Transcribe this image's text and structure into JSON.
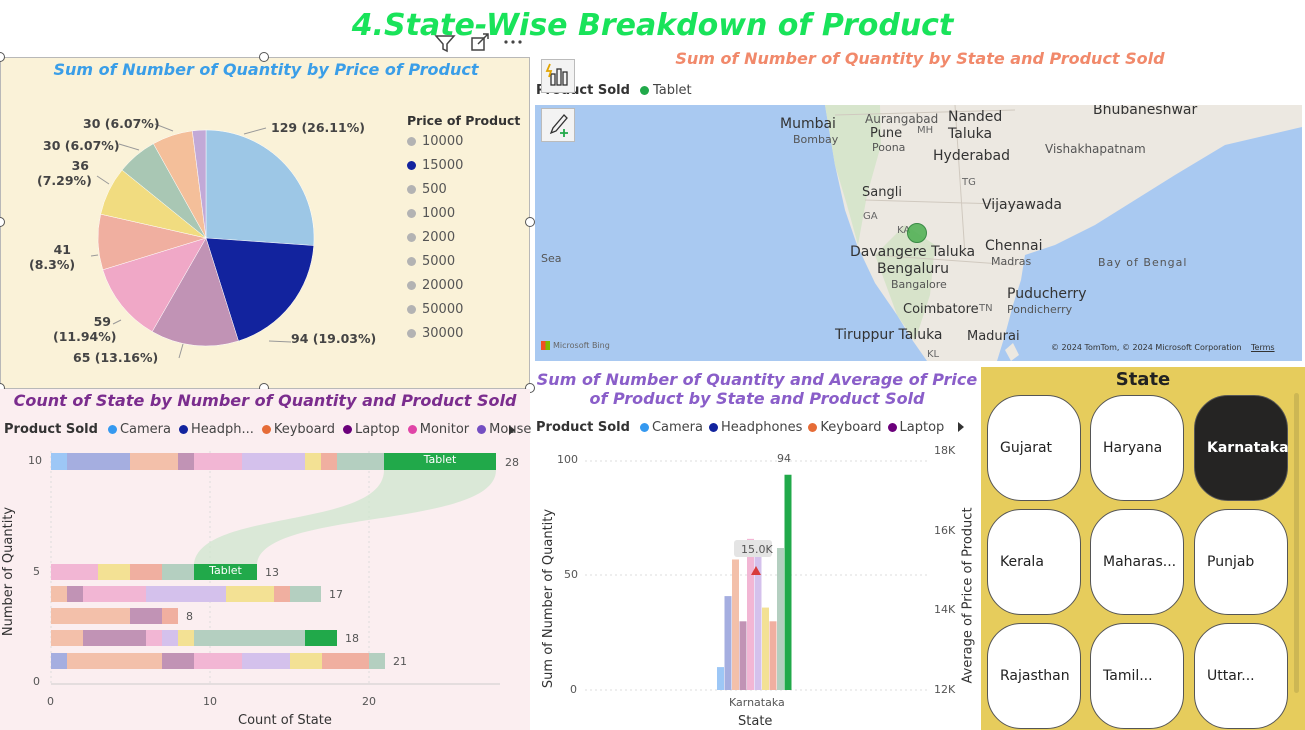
{
  "main_title": "4.State-Wise Breakdown of Product",
  "pie": {
    "title": "Sum of Number of Quantity by Price of Product",
    "legend_title": "Price of Product",
    "legend": [
      {
        "label": "10000",
        "color": "#b3b3b3"
      },
      {
        "label": "15000",
        "color": "#12239e"
      },
      {
        "label": "500",
        "color": "#b3b3b3"
      },
      {
        "label": "1000",
        "color": "#b3b3b3"
      },
      {
        "label": "2000",
        "color": "#b3b3b3"
      },
      {
        "label": "5000",
        "color": "#b3b3b3"
      },
      {
        "label": "20000",
        "color": "#b3b3b3"
      },
      {
        "label": "50000",
        "color": "#b3b3b3"
      },
      {
        "label": "30000",
        "color": "#b3b3b3"
      }
    ],
    "labels": {
      "l129": "129 (26.11%)",
      "l94": "94 (19.03%)",
      "l65": "65 (13.16%)",
      "l59a": "59",
      "l59b": "(11.94%)",
      "l41a": "41",
      "l41b": "(8.3%)",
      "l36a": "36",
      "l36b": "(7.29%)",
      "l30a": "30 (6.07%)",
      "l30b": "30 (6.07%)"
    }
  },
  "chart_data": [
    {
      "type": "pie",
      "title": "Sum of Number of Quantity by Price of Product",
      "legend_title": "Price of Product",
      "slices": [
        {
          "value": 129,
          "pct": "26.11%",
          "color": "#9dc7e6"
        },
        {
          "value": 94,
          "pct": "19.03%",
          "color": "#12239e"
        },
        {
          "value": 65,
          "pct": "13.16%",
          "color": "#c193b5"
        },
        {
          "value": 59,
          "pct": "11.94%",
          "color": "#f0a8c7"
        },
        {
          "value": 41,
          "pct": "8.3%",
          "color": "#f0afa0"
        },
        {
          "value": 36,
          "pct": "7.29%",
          "color": "#f1dc80"
        },
        {
          "value": 30,
          "pct": "6.07%",
          "color": "#a9c7b4"
        },
        {
          "value": 30,
          "pct": "6.07%",
          "color": "#f4bf9a"
        },
        {
          "value": 10,
          "pct": "",
          "color": "#c2a9d7"
        }
      ]
    },
    {
      "type": "bar",
      "title": "Count of State by Number of Quantity and Product Sold",
      "xlabel": "Count of State",
      "ylabel": "Number of Quantity",
      "x_ticks": [
        "0",
        "10",
        "20"
      ],
      "y_ticks": [
        "10",
        "5",
        "0"
      ],
      "legend_title": "Product Sold",
      "legend": [
        {
          "label": "Camera",
          "color": "#3599f0"
        },
        {
          "label": "Headph...",
          "color": "#12239e"
        },
        {
          "label": "Keyboard",
          "color": "#e66c37"
        },
        {
          "label": "Laptop",
          "color": "#6b007b"
        },
        {
          "label": "Monitor",
          "color": "#e044a7"
        },
        {
          "label": "Mouse",
          "color": "#744ec2"
        }
      ],
      "rows": [
        {
          "y": 10,
          "total": "28",
          "highlight_label": "Tablet"
        },
        {
          "y": 5,
          "total": "13",
          "highlight_label": "Tablet"
        },
        {
          "y": 4,
          "total": "17"
        },
        {
          "y": 3,
          "total": "8"
        },
        {
          "y": 2,
          "total": "18"
        },
        {
          "y": 1,
          "total": "21"
        }
      ]
    },
    {
      "type": "bar",
      "title": "Sum of Number of Quantity and Average of Price of Product by State and Product Sold",
      "xlabel": "State",
      "ylabel": "Sum of Number of Quantity",
      "y2label": "Average of Price of Product",
      "categories": [
        "Karnataka"
      ],
      "y_ticks": [
        "100",
        "50",
        "0"
      ],
      "y2_ticks": [
        "18K",
        "16K",
        "14K",
        "12K"
      ],
      "legend_title": "Product Sold",
      "legend": [
        {
          "label": "Camera",
          "color": "#3599f0"
        },
        {
          "label": "Headphones",
          "color": "#12239e"
        },
        {
          "label": "Keyboard",
          "color": "#e66c37"
        },
        {
          "label": "Laptop",
          "color": "#6b007b"
        }
      ],
      "bar_values": [
        10,
        41,
        57,
        30,
        66,
        62,
        36,
        30,
        62,
        94
      ],
      "bar_colors": [
        "#9dc7f6",
        "#a5aee0",
        "#f3c0aa",
        "#c193b5",
        "#f2b6d4",
        "#d4c1ec",
        "#f3e194",
        "#f0afa0",
        "#b4cfc0",
        "#21a94a"
      ],
      "top_label": "94",
      "marker_label": "15.0K"
    }
  ],
  "map": {
    "title": "Sum of Number of Quantity by State and Product Sold",
    "legend_title": "Product Sold",
    "legend_item": "Tablet",
    "legend_color": "#21a94a",
    "places": {
      "mumbai": "Mumbai",
      "bombay": "Bombay",
      "aurangabad": "Aurangabad",
      "mh": "MH",
      "nanded": "Nanded",
      "taluka": "Taluka",
      "pune": "Pune",
      "poona": "Poona",
      "hyderabad": "Hyderabad",
      "bhubaneshwar": "Bhubaneshwar",
      "vishakhapatnam": "Vishakhapatnam",
      "tg": "TG",
      "sangli": "Sangli",
      "ga": "GA",
      "ka": "KA",
      "vijayawada": "Vijayawada",
      "davangere": "Davangere Taluka",
      "chennai": "Chennai",
      "madras": "Madras",
      "bengaluru": "Bengaluru",
      "bangalore": "Bangalore",
      "sea": "Sea",
      "bay": "Bay of Bengal",
      "puducherry": "Puducherry",
      "pondicherry": "Pondicherry",
      "coimbatore": "Coimbatore",
      "tn": "TN",
      "tiruppur": "Tiruppur Taluka",
      "madurai": "Madurai",
      "kl": "KL",
      "bing": "Microsoft Bing",
      "copyright": "© 2024 TomTom, © 2024 Microsoft Corporation",
      "terms": "Terms"
    }
  },
  "slicer": {
    "title": "State",
    "items": [
      "Gujarat",
      "Haryana",
      "Karnataka",
      "Kerala",
      "Maharas...",
      "Punjab",
      "Rajasthan",
      "Tamil...",
      "Uttar..."
    ],
    "selected": "Karnataka"
  },
  "colors": {
    "title_green": "#19e35a",
    "pie_title": "#3a9ee8",
    "map_title": "#f1896b",
    "bar_title": "#7b2d8e",
    "combo_title": "#8a5ec9"
  }
}
